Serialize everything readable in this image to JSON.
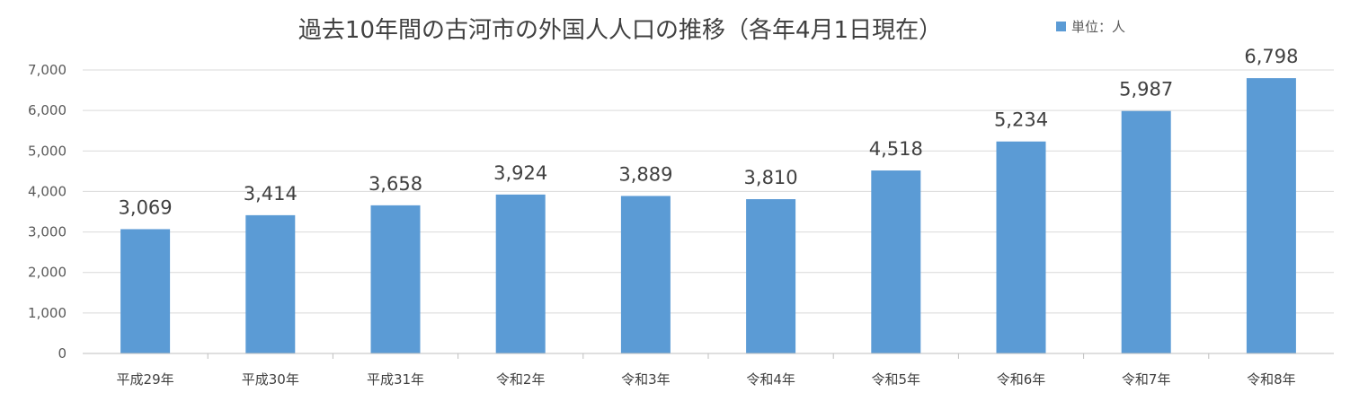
{
  "chart_data": {
    "type": "bar",
    "title": "過去10年間の古河市の外国人人口の推移（各年4月1日現在）",
    "legend": {
      "label": "単位：人",
      "placement": "top-right",
      "color": "#5b9bd5"
    },
    "categories": [
      "平成29年",
      "平成30年",
      "平成31年",
      "令和2年",
      "令和3年",
      "令和4年",
      "令和5年",
      "令和6年",
      "令和7年",
      "令和8年"
    ],
    "values": [
      3069,
      3414,
      3658,
      3924,
      3889,
      3810,
      4518,
      5234,
      5987,
      6798
    ],
    "data_labels": [
      "3,069",
      "3,414",
      "3,658",
      "3,924",
      "3,889",
      "3,810",
      "4,518",
      "5,234",
      "5,987",
      "6,798"
    ],
    "y_ticks": [
      "0",
      "1,000",
      "2,000",
      "3,000",
      "4,000",
      "5,000",
      "6,000",
      "7,000"
    ],
    "ylim": [
      0,
      7000
    ],
    "grid": true,
    "bar_color": "#5b9bd5"
  }
}
